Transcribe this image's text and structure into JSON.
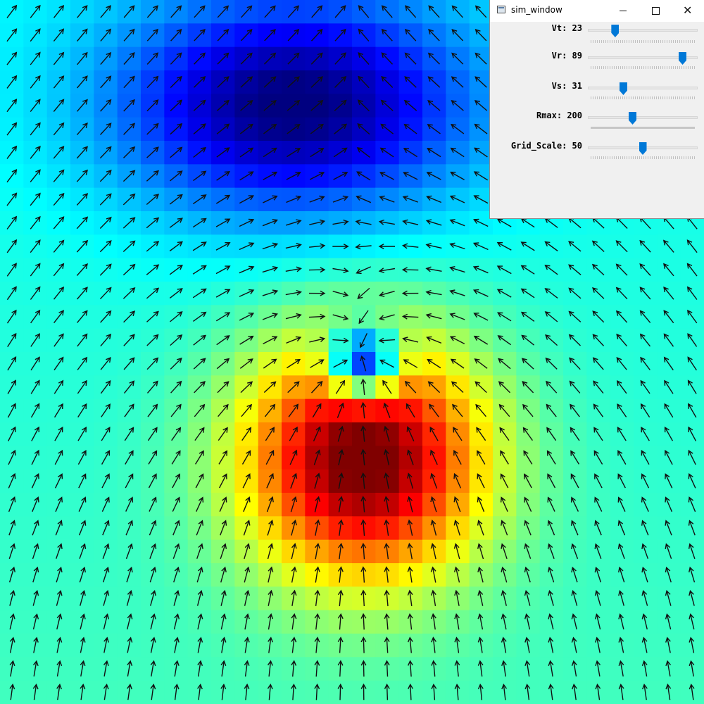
{
  "window": {
    "title": "sim_window",
    "icon": "app-window-icon",
    "controls": {
      "minimize": "minimize-icon",
      "maximize": "maximize-icon",
      "close": "close-icon",
      "close_glyph": "✕"
    }
  },
  "trackbars": [
    {
      "label": "Vt: 23",
      "fraction": 0.23
    },
    {
      "label": "Vr: 89",
      "fraction": 0.89
    },
    {
      "label": "Vs: 31",
      "fraction": 0.31
    },
    {
      "label": "Rmax: 200",
      "fraction": 0.4
    },
    {
      "label": "Grid_Scale: 50",
      "fraction": 0.5
    }
  ],
  "field": {
    "colormap": "jet",
    "grid_rows": 30,
    "grid_cols": 30,
    "hot_spot": {
      "row": 19,
      "col": 15
    },
    "cold_spot": {
      "row": 15,
      "col": 15
    },
    "dark_well": {
      "row": 4,
      "col": 12
    }
  }
}
